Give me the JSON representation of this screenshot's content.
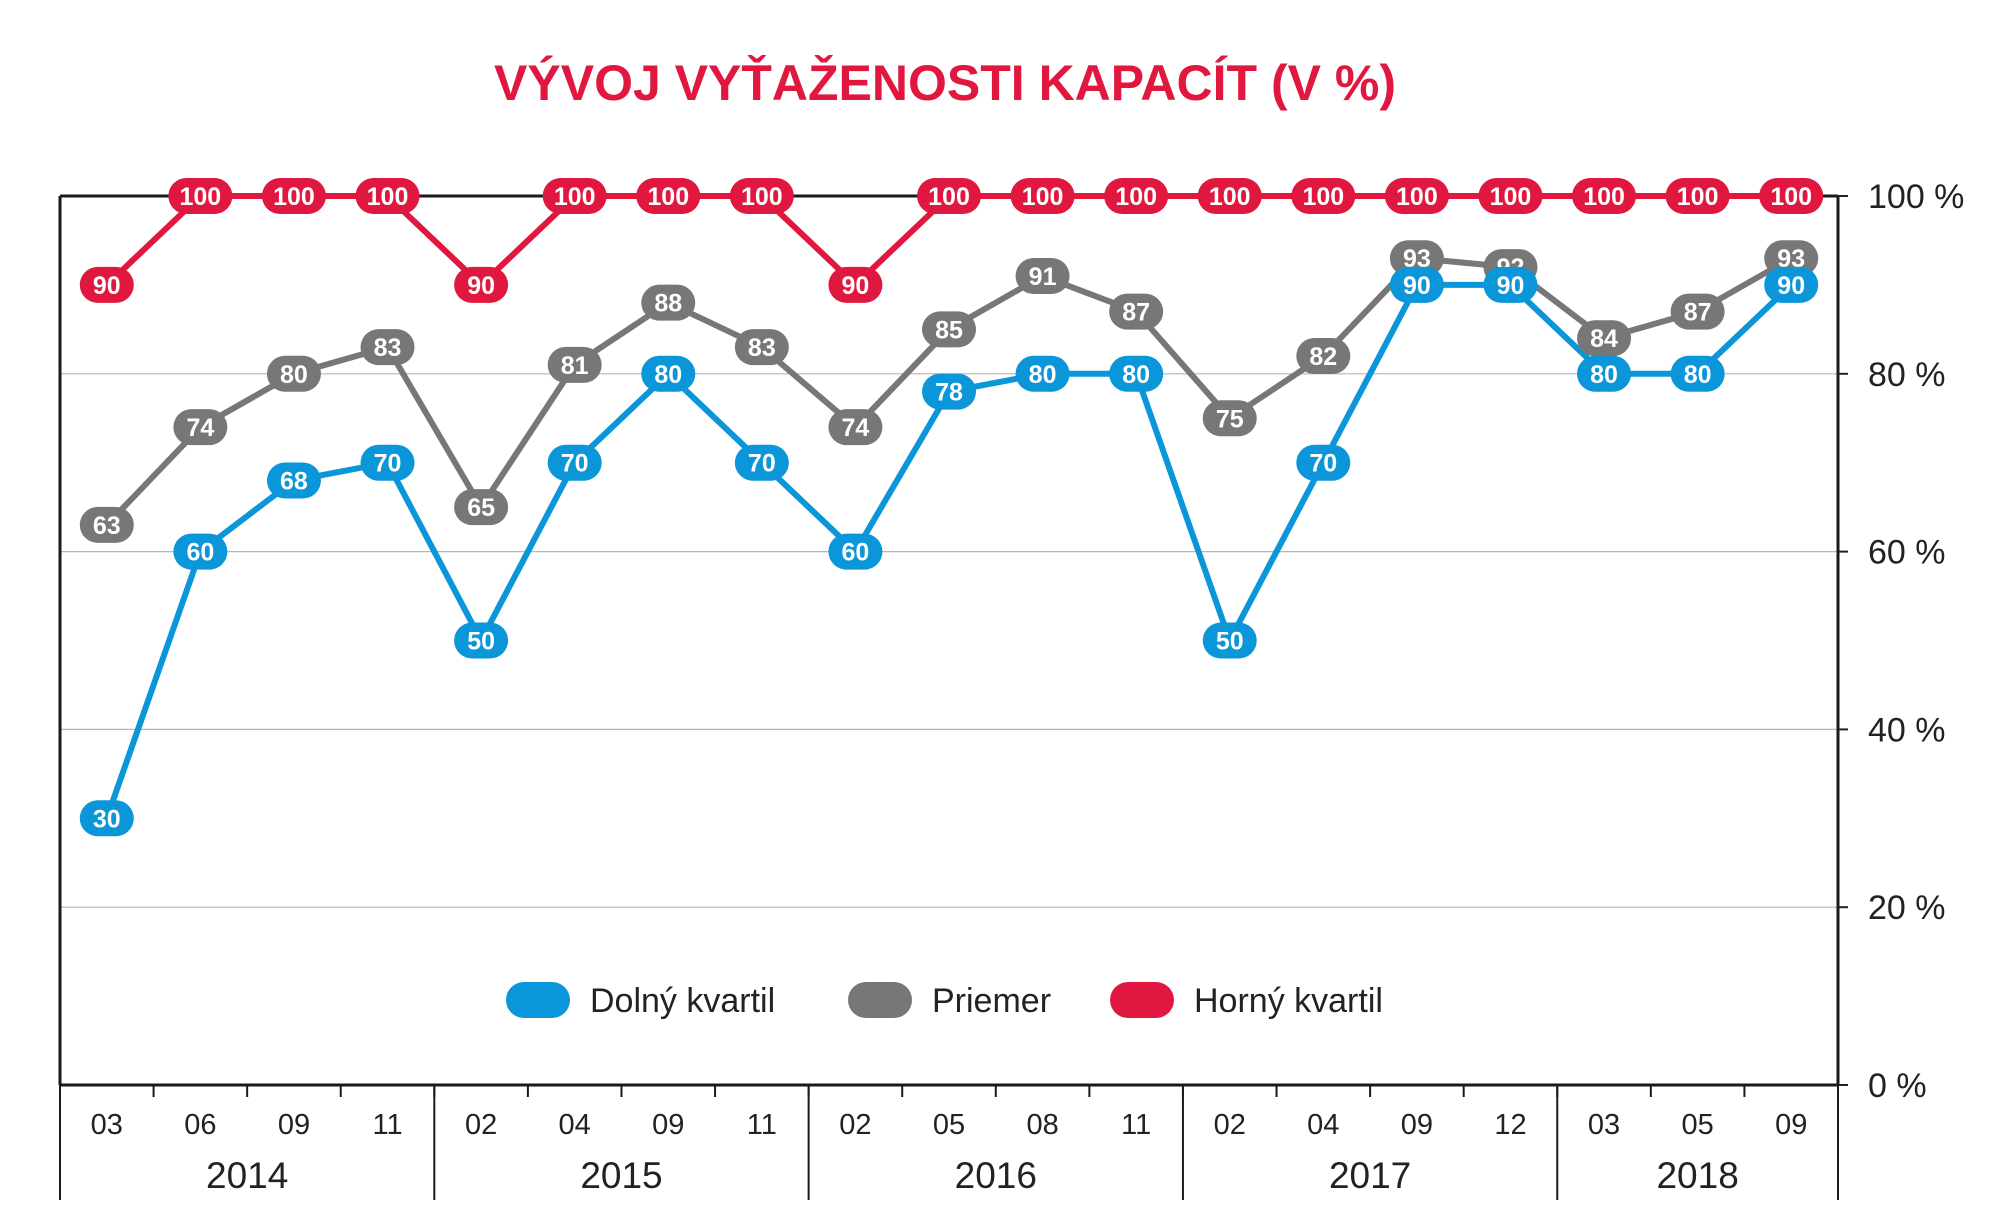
{
  "chart_data": {
    "type": "line",
    "title": "VÝVOJ VYŤAŽENOSTI KAPACÍT (V %)",
    "categories": [
      "03",
      "06",
      "09",
      "11",
      "02",
      "04",
      "09",
      "11",
      "02",
      "05",
      "08",
      "11",
      "02",
      "04",
      "09",
      "12",
      "03",
      "05",
      "09"
    ],
    "years": [
      {
        "label": "2014",
        "count": 4
      },
      {
        "label": "2015",
        "count": 4
      },
      {
        "label": "2016",
        "count": 4
      },
      {
        "label": "2017",
        "count": 4
      },
      {
        "label": "2018",
        "count": 3
      }
    ],
    "y_ticks": [
      {
        "value": 0,
        "label": "0 %"
      },
      {
        "value": 20,
        "label": "20 %"
      },
      {
        "value": 40,
        "label": "40 %"
      },
      {
        "value": 60,
        "label": "60 %"
      },
      {
        "value": 80,
        "label": "80 %"
      },
      {
        "value": 100,
        "label": "100 %"
      }
    ],
    "ylim": [
      0,
      100
    ],
    "grid": true,
    "legend_position": "bottom-center",
    "series": [
      {
        "name": "Horný kvartil",
        "color": "#e0173f",
        "values": [
          90,
          100,
          100,
          100,
          90,
          100,
          100,
          100,
          90,
          100,
          100,
          100,
          100,
          100,
          100,
          100,
          100,
          100,
          100
        ]
      },
      {
        "name": "Priemer",
        "color": "#777777",
        "values": [
          63,
          74,
          80,
          83,
          65,
          81,
          88,
          83,
          74,
          85,
          91,
          87,
          75,
          82,
          93,
          92,
          84,
          87,
          93
        ]
      },
      {
        "name": "Dolný kvartil",
        "color": "#0a96d8",
        "values": [
          30,
          60,
          68,
          70,
          50,
          70,
          80,
          70,
          60,
          78,
          80,
          80,
          50,
          70,
          90,
          90,
          80,
          80,
          90
        ]
      }
    ],
    "legend_order": [
      "Dolný kvartil",
      "Priemer",
      "Horný kvartil"
    ]
  }
}
